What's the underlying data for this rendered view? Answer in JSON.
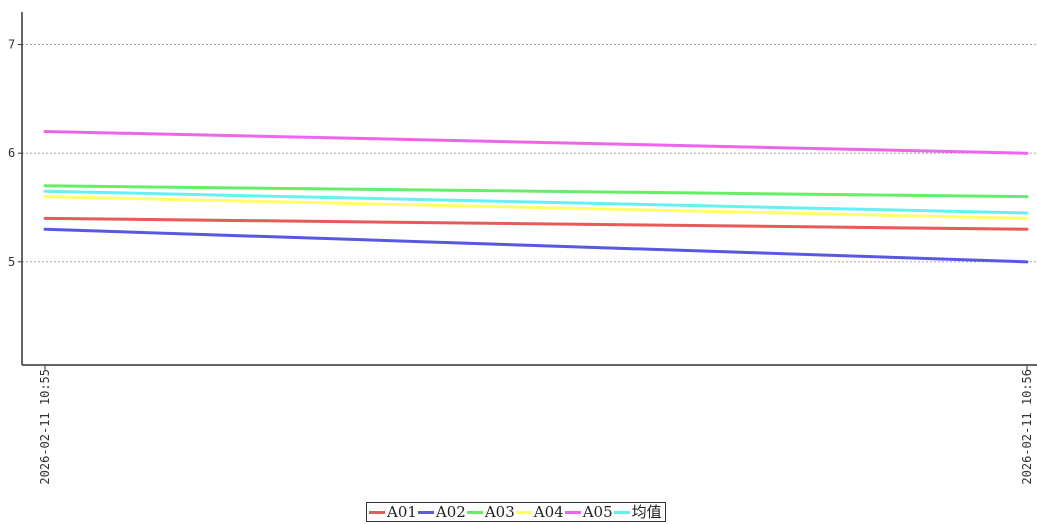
{
  "chart_data": {
    "type": "line",
    "title": "",
    "xlabel": "",
    "ylabel": "",
    "x": [
      "2026-02-11 10:55",
      "2026-02-11 10:56"
    ],
    "ylim": [
      4.05,
      7.3
    ],
    "yticks": [
      5,
      6,
      7
    ],
    "grid": "horizontal-dashed",
    "legend_position": "bottom-center",
    "series": [
      {
        "name": "A01",
        "color": "#e85a5a",
        "values": [
          5.4,
          5.3
        ]
      },
      {
        "name": "A02",
        "color": "#5858e0",
        "values": [
          5.3,
          5.0
        ]
      },
      {
        "name": "A03",
        "color": "#66ee66",
        "values": [
          5.7,
          5.6
        ]
      },
      {
        "name": "A04",
        "color": "#ffff66",
        "values": [
          5.6,
          5.4
        ]
      },
      {
        "name": "A05",
        "color": "#ee66ee",
        "values": [
          6.2,
          6.0
        ]
      },
      {
        "name": "均值",
        "color": "#66f0f0",
        "values": [
          5.65,
          5.45
        ]
      }
    ]
  }
}
